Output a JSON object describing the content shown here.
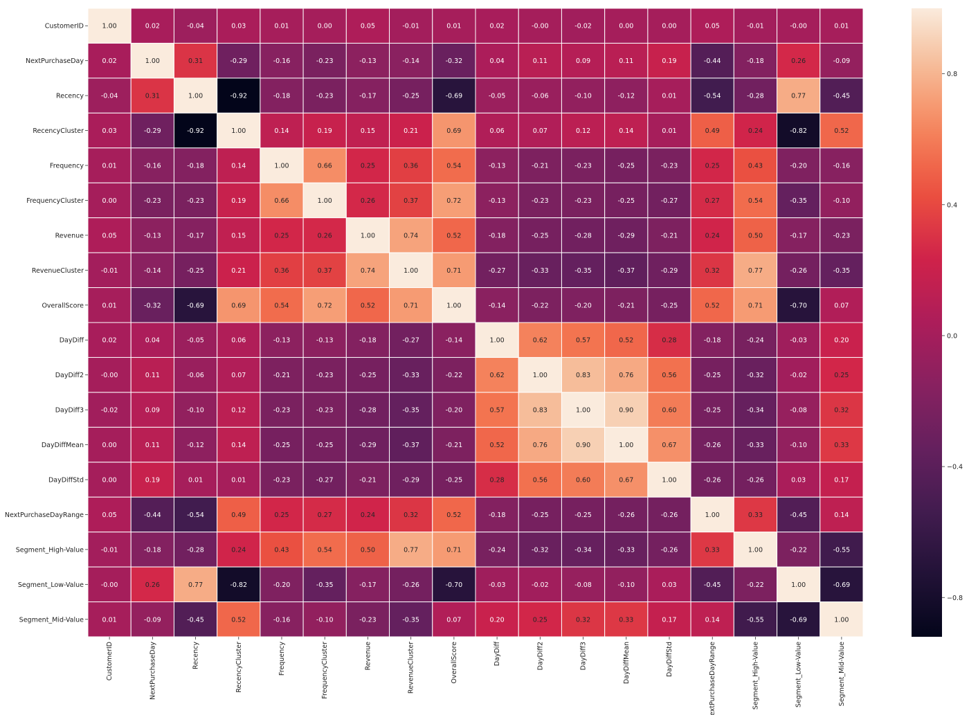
{
  "chart_data": {
    "type": "heatmap",
    "title": "",
    "xlabel": "",
    "ylabel": "",
    "grid": false,
    "labels": [
      "CustomerID",
      "NextPurchaseDay",
      "Recency",
      "RecencyCluster",
      "Frequency",
      "FrequencyCluster",
      "Revenue",
      "RevenueCluster",
      "OverallScore",
      "DayDiff",
      "DayDiff2",
      "DayDiff3",
      "DayDiffMean",
      "DayDiffStd",
      "NextPurchaseDayRange",
      "Segment_High-Value",
      "Segment_Low-Value",
      "Segment_Mid-Value"
    ],
    "values": [
      [
        1.0,
        0.02,
        -0.04,
        0.03,
        0.01,
        0.0,
        0.05,
        -0.01,
        0.01,
        0.02,
        -0.0,
        -0.02,
        0.0,
        0.0,
        0.05,
        -0.01,
        -0.0,
        0.01
      ],
      [
        0.02,
        1.0,
        0.31,
        -0.29,
        -0.16,
        -0.23,
        -0.13,
        -0.14,
        -0.32,
        0.04,
        0.11,
        0.09,
        0.11,
        0.19,
        -0.44,
        -0.18,
        0.26,
        -0.09
      ],
      [
        -0.04,
        0.31,
        1.0,
        -0.92,
        -0.18,
        -0.23,
        -0.17,
        -0.25,
        -0.69,
        -0.05,
        -0.06,
        -0.1,
        -0.12,
        0.01,
        -0.54,
        -0.28,
        0.77,
        -0.45
      ],
      [
        0.03,
        -0.29,
        -0.92,
        1.0,
        0.14,
        0.19,
        0.15,
        0.21,
        0.69,
        0.06,
        0.07,
        0.12,
        0.14,
        0.01,
        0.49,
        0.24,
        -0.82,
        0.52
      ],
      [
        0.01,
        -0.16,
        -0.18,
        0.14,
        1.0,
        0.66,
        0.25,
        0.36,
        0.54,
        -0.13,
        -0.21,
        -0.23,
        -0.25,
        -0.23,
        0.25,
        0.43,
        -0.2,
        -0.16
      ],
      [
        0.0,
        -0.23,
        -0.23,
        0.19,
        0.66,
        1.0,
        0.26,
        0.37,
        0.72,
        -0.13,
        -0.23,
        -0.23,
        -0.25,
        -0.27,
        0.27,
        0.54,
        -0.35,
        -0.1
      ],
      [
        0.05,
        -0.13,
        -0.17,
        0.15,
        0.25,
        0.26,
        1.0,
        0.74,
        0.52,
        -0.18,
        -0.25,
        -0.28,
        -0.29,
        -0.21,
        0.24,
        0.5,
        -0.17,
        -0.23
      ],
      [
        -0.01,
        -0.14,
        -0.25,
        0.21,
        0.36,
        0.37,
        0.74,
        1.0,
        0.71,
        -0.27,
        -0.33,
        -0.35,
        -0.37,
        -0.29,
        0.32,
        0.77,
        -0.26,
        -0.35
      ],
      [
        0.01,
        -0.32,
        -0.69,
        0.69,
        0.54,
        0.72,
        0.52,
        0.71,
        1.0,
        -0.14,
        -0.22,
        -0.2,
        -0.21,
        -0.25,
        0.52,
        0.71,
        -0.7,
        0.07
      ],
      [
        0.02,
        0.04,
        -0.05,
        0.06,
        -0.13,
        -0.13,
        -0.18,
        -0.27,
        -0.14,
        1.0,
        0.62,
        0.57,
        0.52,
        0.28,
        -0.18,
        -0.24,
        -0.03,
        0.2
      ],
      [
        -0.0,
        0.11,
        -0.06,
        0.07,
        -0.21,
        -0.23,
        -0.25,
        -0.33,
        -0.22,
        0.62,
        1.0,
        0.83,
        0.76,
        0.56,
        -0.25,
        -0.32,
        -0.02,
        0.25
      ],
      [
        -0.02,
        0.09,
        -0.1,
        0.12,
        -0.23,
        -0.23,
        -0.28,
        -0.35,
        -0.2,
        0.57,
        0.83,
        1.0,
        0.9,
        0.6,
        -0.25,
        -0.34,
        -0.08,
        0.32
      ],
      [
        0.0,
        0.11,
        -0.12,
        0.14,
        -0.25,
        -0.25,
        -0.29,
        -0.37,
        -0.21,
        0.52,
        0.76,
        0.9,
        1.0,
        0.67,
        -0.26,
        -0.33,
        -0.1,
        0.33
      ],
      [
        0.0,
        0.19,
        0.01,
        0.01,
        -0.23,
        -0.27,
        -0.21,
        -0.29,
        -0.25,
        0.28,
        0.56,
        0.6,
        0.67,
        1.0,
        -0.26,
        -0.26,
        0.03,
        0.17
      ],
      [
        0.05,
        -0.44,
        -0.54,
        0.49,
        0.25,
        0.27,
        0.24,
        0.32,
        0.52,
        -0.18,
        -0.25,
        -0.25,
        -0.26,
        -0.26,
        1.0,
        0.33,
        -0.45,
        0.14
      ],
      [
        -0.01,
        -0.18,
        -0.28,
        0.24,
        0.43,
        0.54,
        0.5,
        0.77,
        0.71,
        -0.24,
        -0.32,
        -0.34,
        -0.33,
        -0.26,
        0.33,
        1.0,
        -0.22,
        -0.55
      ],
      [
        -0.0,
        0.26,
        0.77,
        -0.82,
        -0.2,
        -0.35,
        -0.17,
        -0.26,
        -0.7,
        -0.03,
        -0.02,
        -0.08,
        -0.1,
        0.03,
        -0.45,
        -0.22,
        1.0,
        -0.69
      ],
      [
        0.01,
        -0.09,
        -0.45,
        0.52,
        -0.16,
        -0.1,
        -0.23,
        -0.35,
        0.07,
        0.2,
        0.25,
        0.32,
        0.33,
        0.17,
        0.14,
        -0.55,
        -0.69,
        1.0
      ]
    ],
    "colorbar": {
      "colormap": "rocket",
      "range": [
        -0.92,
        1.0
      ],
      "ticks": [
        -0.8,
        -0.4,
        0.0,
        0.4,
        0.8
      ],
      "tick_labels": [
        "−0.8",
        "−0.4",
        "0.0",
        "0.4",
        "0.8"
      ]
    }
  }
}
